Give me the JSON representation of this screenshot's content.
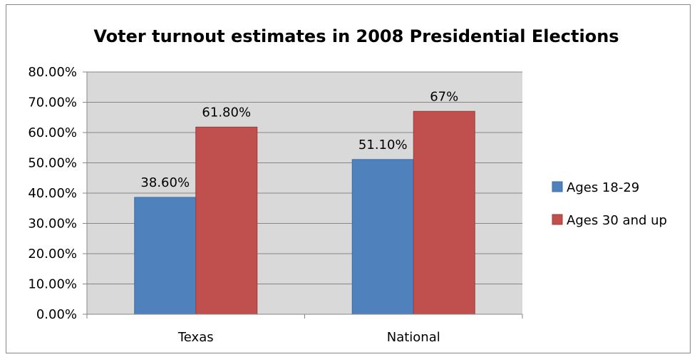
{
  "chart_data": {
    "type": "bar",
    "title": "Voter turnout estimates in 2008 Presidential Elections",
    "categories": [
      "Texas",
      "National"
    ],
    "series": [
      {
        "name": "Ages 18-29",
        "values": [
          38.6,
          51.1
        ],
        "labels": [
          "38.60%",
          "51.10%"
        ],
        "color": "#4F81BD"
      },
      {
        "name": "Ages 30 and up",
        "values": [
          61.8,
          67
        ],
        "labels": [
          "61.80%",
          "67%"
        ],
        "color": "#C0504D"
      }
    ],
    "ylim": [
      0,
      80
    ],
    "yticks": [
      0,
      10,
      20,
      30,
      40,
      50,
      60,
      70,
      80
    ],
    "ytick_labels": [
      "0.00%",
      "10.00%",
      "20.00%",
      "30.00%",
      "40.00%",
      "50.00%",
      "60.00%",
      "70.00%",
      "80.00%"
    ],
    "grid": true,
    "legend_position": "right",
    "plot_background": "#D9D9D9",
    "gridline_color": "#868686"
  }
}
